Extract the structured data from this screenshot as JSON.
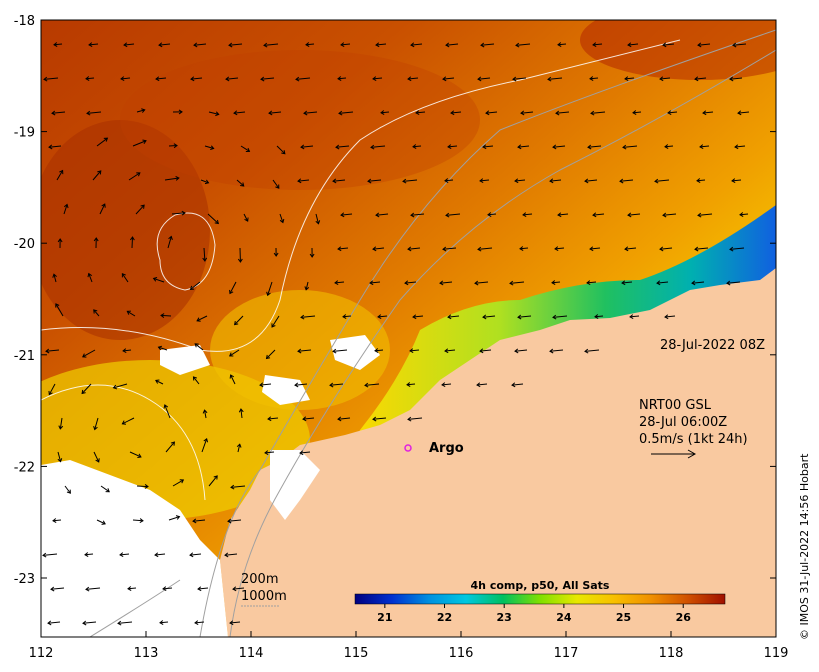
{
  "map": {
    "x_ticks": [
      "112",
      "113",
      "114",
      "115",
      "116",
      "117",
      "118",
      "119"
    ],
    "y_ticks": [
      "-18",
      "-19",
      "-20",
      "-21",
      "-22",
      "-23"
    ],
    "date_label": "28-Jul-2022 08Z",
    "current_info": {
      "line1": "NRT00 GSL",
      "line2": "28-Jul 06:00Z",
      "line3": "0.5m/s (1kt 24h)"
    },
    "argo_label": "Argo",
    "depth_contours": {
      "label_200": "200m",
      "label_1000": "1000m"
    },
    "colorbar": {
      "title": "4h comp, p50, All Sats",
      "ticks": [
        "21",
        "22",
        "23",
        "24",
        "25",
        "26"
      ],
      "range": [
        20.5,
        26.7
      ]
    },
    "credit": "© IMOS 31-Jul-2022 14:56 Hobart",
    "colors": {
      "land": "#f9c9a0",
      "cloud": "#ffffff",
      "argo": "#e020e0"
    }
  }
}
